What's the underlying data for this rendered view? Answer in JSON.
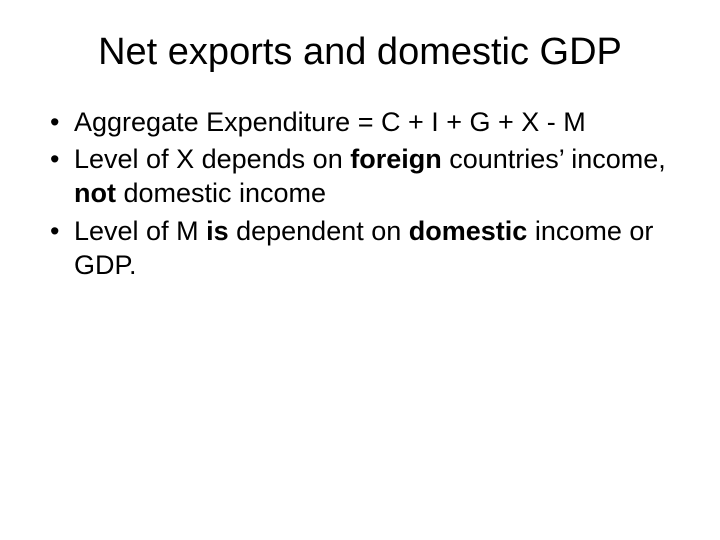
{
  "title": "Net exports and domestic GDP",
  "bullets": [
    {
      "segments": [
        {
          "text": "Aggregate Expenditure = C + I + G + X - M",
          "bold": false
        }
      ]
    },
    {
      "segments": [
        {
          "text": "Level of X depends on ",
          "bold": false
        },
        {
          "text": "foreign",
          "bold": true
        },
        {
          "text": " countries’ income, ",
          "bold": false
        },
        {
          "text": "not",
          "bold": true
        },
        {
          "text": " domestic income",
          "bold": false
        }
      ]
    },
    {
      "segments": [
        {
          "text": "Level of M ",
          "bold": false
        },
        {
          "text": "is",
          "bold": true
        },
        {
          "text": " dependent on ",
          "bold": false
        },
        {
          "text": "domestic",
          "bold": true
        },
        {
          "text": " income or GDP.",
          "bold": false
        }
      ]
    }
  ],
  "style": {
    "background_color": "#ffffff",
    "text_color": "#000000",
    "title_fontsize": 38,
    "title_fontweight": 400,
    "body_fontsize": 27,
    "font_family": "Arial"
  }
}
